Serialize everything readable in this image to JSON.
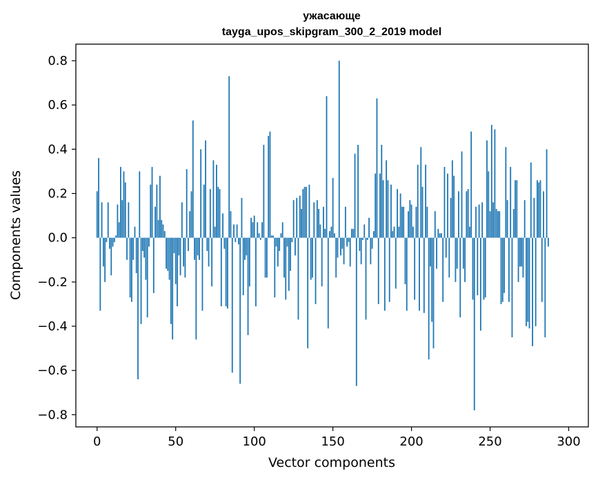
{
  "chart_data": {
    "type": "bar",
    "title": "ужасающе",
    "subtitle": "tayga_upos_skipgram_300_2_2019 model",
    "xlabel": "Vector components",
    "ylabel": "Components values",
    "xlim": [
      -13.5,
      312.5
    ],
    "ylim": [
      -0.855,
      0.875
    ],
    "xticks": [
      0,
      50,
      100,
      150,
      200,
      250,
      300
    ],
    "yticks": [
      -0.8,
      -0.6,
      -0.4,
      -0.2,
      0.0,
      0.2,
      0.4,
      0.6,
      0.8
    ],
    "ytick_labels": [
      "−0.8",
      "−0.6",
      "−0.4",
      "−0.2",
      "0.0",
      "0.2",
      "0.4",
      "0.6",
      "0.8"
    ],
    "bar_color": "#1f77b4",
    "x": "component index 0..299",
    "values": [
      0.21,
      0.36,
      -0.33,
      0.16,
      -0.13,
      -0.2,
      -0.02,
      0.16,
      -0.05,
      -0.17,
      -0.04,
      -0.02,
      0.01,
      0.15,
      0.07,
      0.32,
      0.17,
      0.3,
      0.25,
      -0.1,
      0.16,
      -0.27,
      -0.29,
      -0.1,
      0.05,
      -0.16,
      -0.64,
      0.3,
      -0.39,
      -0.06,
      -0.09,
      -0.19,
      -0.36,
      -0.04,
      0.24,
      0.32,
      -0.25,
      0.14,
      0.24,
      0.08,
      0.28,
      0.08,
      0.06,
      0.03,
      -0.14,
      -0.15,
      -0.19,
      -0.39,
      -0.46,
      -0.07,
      -0.21,
      -0.31,
      -0.08,
      -0.17,
      0.16,
      -0.13,
      -0.18,
      0.31,
      -0.06,
      0.12,
      0.21,
      0.53,
      -0.1,
      -0.46,
      -0.08,
      -0.1,
      0.4,
      -0.33,
      0.24,
      0.44,
      -0.06,
      -0.13,
      0.22,
      -0.22,
      0.35,
      0.05,
      0.33,
      0.23,
      0.22,
      -0.31,
      0.11,
      -0.05,
      -0.31,
      -0.32,
      0.73,
      0.12,
      -0.61,
      0.06,
      -0.02,
      0.06,
      -0.03,
      -0.66,
      0.18,
      -0.26,
      -0.1,
      -0.08,
      -0.44,
      -0.22,
      0.09,
      0.07,
      0.1,
      -0.31,
      0.07,
      0.02,
      -0.01,
      0.07,
      0.42,
      -0.18,
      -0.18,
      0.46,
      0.48,
      0.01,
      0.01,
      -0.27,
      -0.04,
      -0.13,
      -0.06,
      0.02,
      0.07,
      -0.18,
      -0.28,
      -0.04,
      -0.24,
      -0.15,
      -0.02,
      0.17,
      -0.08,
      0.18,
      -0.37,
      0.19,
      0.13,
      0.22,
      0.23,
      0.23,
      -0.5,
      0.24,
      -0.19,
      -0.18,
      0.16,
      -0.3,
      0.17,
      0.13,
      0.06,
      -0.22,
      0.14,
      0.04,
      0.64,
      -0.41,
      0.03,
      0.05,
      0.27,
      0.02,
      -0.18,
      -0.09,
      0.8,
      -0.08,
      -0.05,
      -0.12,
      0.14,
      -0.04,
      -0.02,
      -0.13,
      0.04,
      0.04,
      0.38,
      -0.67,
      0.42,
      -0.06,
      -0.12,
      -0.01,
      0.06,
      -0.37,
      -0.01,
      0.09,
      -0.12,
      -0.05,
      0.03,
      0.29,
      0.63,
      -0.3,
      0.29,
      0.42,
      0.26,
      -0.33,
      0.35,
      0.26,
      -0.29,
      0.24,
      0.03,
      0.05,
      -0.23,
      0.22,
      0.05,
      0.2,
      0.14,
      0.14,
      -0.21,
      -0.33,
      0.12,
      0.17,
      0.15,
      0.05,
      -0.28,
      0.14,
      0.33,
      -0.33,
      0.41,
      0.23,
      -0.34,
      0.33,
      0.14,
      -0.55,
      -0.13,
      -0.38,
      -0.5,
      0.12,
      -0.14,
      0.04,
      0.02,
      0.02,
      -0.29,
      0.32,
      -0.09,
      0.29,
      -0.18,
      0.18,
      0.35,
      0.28,
      -0.2,
      -0.14,
      0.21,
      -0.36,
      0.39,
      -0.14,
      -0.2,
      0.21,
      0.22,
      0.05,
      0.48,
      -0.28,
      -0.78,
      0.14,
      -0.26,
      0.15,
      -0.42,
      0.16,
      -0.28,
      -0.27,
      0.44,
      0.3,
      0.12,
      0.51,
      0.16,
      0.49,
      0.13,
      0.12,
      0.12,
      -0.3,
      -0.29,
      -0.25,
      0.41,
      0.17,
      -0.29,
      0.32,
      -0.45,
      0.13,
      0.26,
      0.26,
      -0.2,
      -0.13,
      -0.13,
      -0.18,
      0.17,
      -0.4,
      -0.38,
      -0.41,
      0.34,
      -0.49,
      0.18,
      -0.4,
      0.26,
      0.25,
      0.26,
      -0.29,
      0.21,
      -0.45,
      0.4,
      -0.04
    ]
  }
}
